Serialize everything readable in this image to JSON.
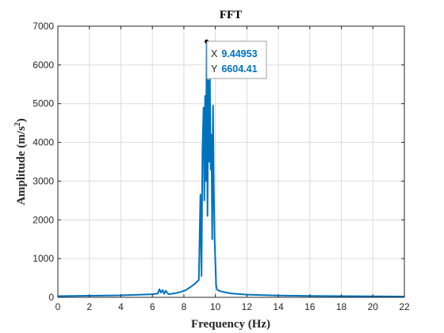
{
  "chart_data": {
    "type": "line",
    "title": "FFT",
    "xlabel": "Frequency (Hz)",
    "ylabel_base": "Amplitude (m/s",
    "ylabel_sup": "2",
    "ylabel_close": ")",
    "xlim": [
      0,
      22
    ],
    "ylim": [
      0,
      7000
    ],
    "xticks": [
      0,
      2,
      4,
      6,
      8,
      10,
      12,
      14,
      16,
      18,
      20,
      22
    ],
    "yticks": [
      0,
      1000,
      2000,
      3000,
      4000,
      5000,
      6000,
      7000
    ],
    "grid": true,
    "colors": {
      "line": "#0072BD",
      "grid": "#dcdcdc",
      "axis": "#262626",
      "datatip_value": "#0072BD"
    },
    "series": [
      {
        "x": [
          0,
          2,
          4,
          6,
          6.35,
          6.45,
          6.55,
          6.65,
          6.75,
          6.85,
          6.95,
          7.05,
          7.2,
          7.5,
          7.8,
          8.1,
          8.4,
          8.7,
          8.95,
          9.05,
          9.12,
          9.18,
          9.25,
          9.3,
          9.35,
          9.4,
          9.44953,
          9.5,
          9.55,
          9.6,
          9.65,
          9.7,
          9.75,
          9.8,
          9.85,
          9.9,
          9.95,
          10.0,
          10.05,
          10.1,
          10.3,
          10.6,
          11,
          12,
          14,
          16,
          18,
          20,
          22
        ],
        "y": [
          30,
          40,
          50,
          80,
          100,
          210,
          120,
          190,
          90,
          170,
          110,
          80,
          90,
          110,
          140,
          180,
          260,
          350,
          450,
          2650,
          550,
          3800,
          4900,
          2500,
          5200,
          3000,
          6604.41,
          2100,
          5600,
          3500,
          5800,
          3300,
          4200,
          1500,
          4950,
          2800,
          1500,
          900,
          300,
          200,
          160,
          130,
          100,
          70,
          45,
          35,
          30,
          25,
          20
        ]
      }
    ],
    "datatip": {
      "x_label": "X",
      "x_value": "9.44953",
      "y_label": "Y",
      "y_value": "6604.41",
      "x": 9.44953,
      "y": 6604.41
    }
  }
}
